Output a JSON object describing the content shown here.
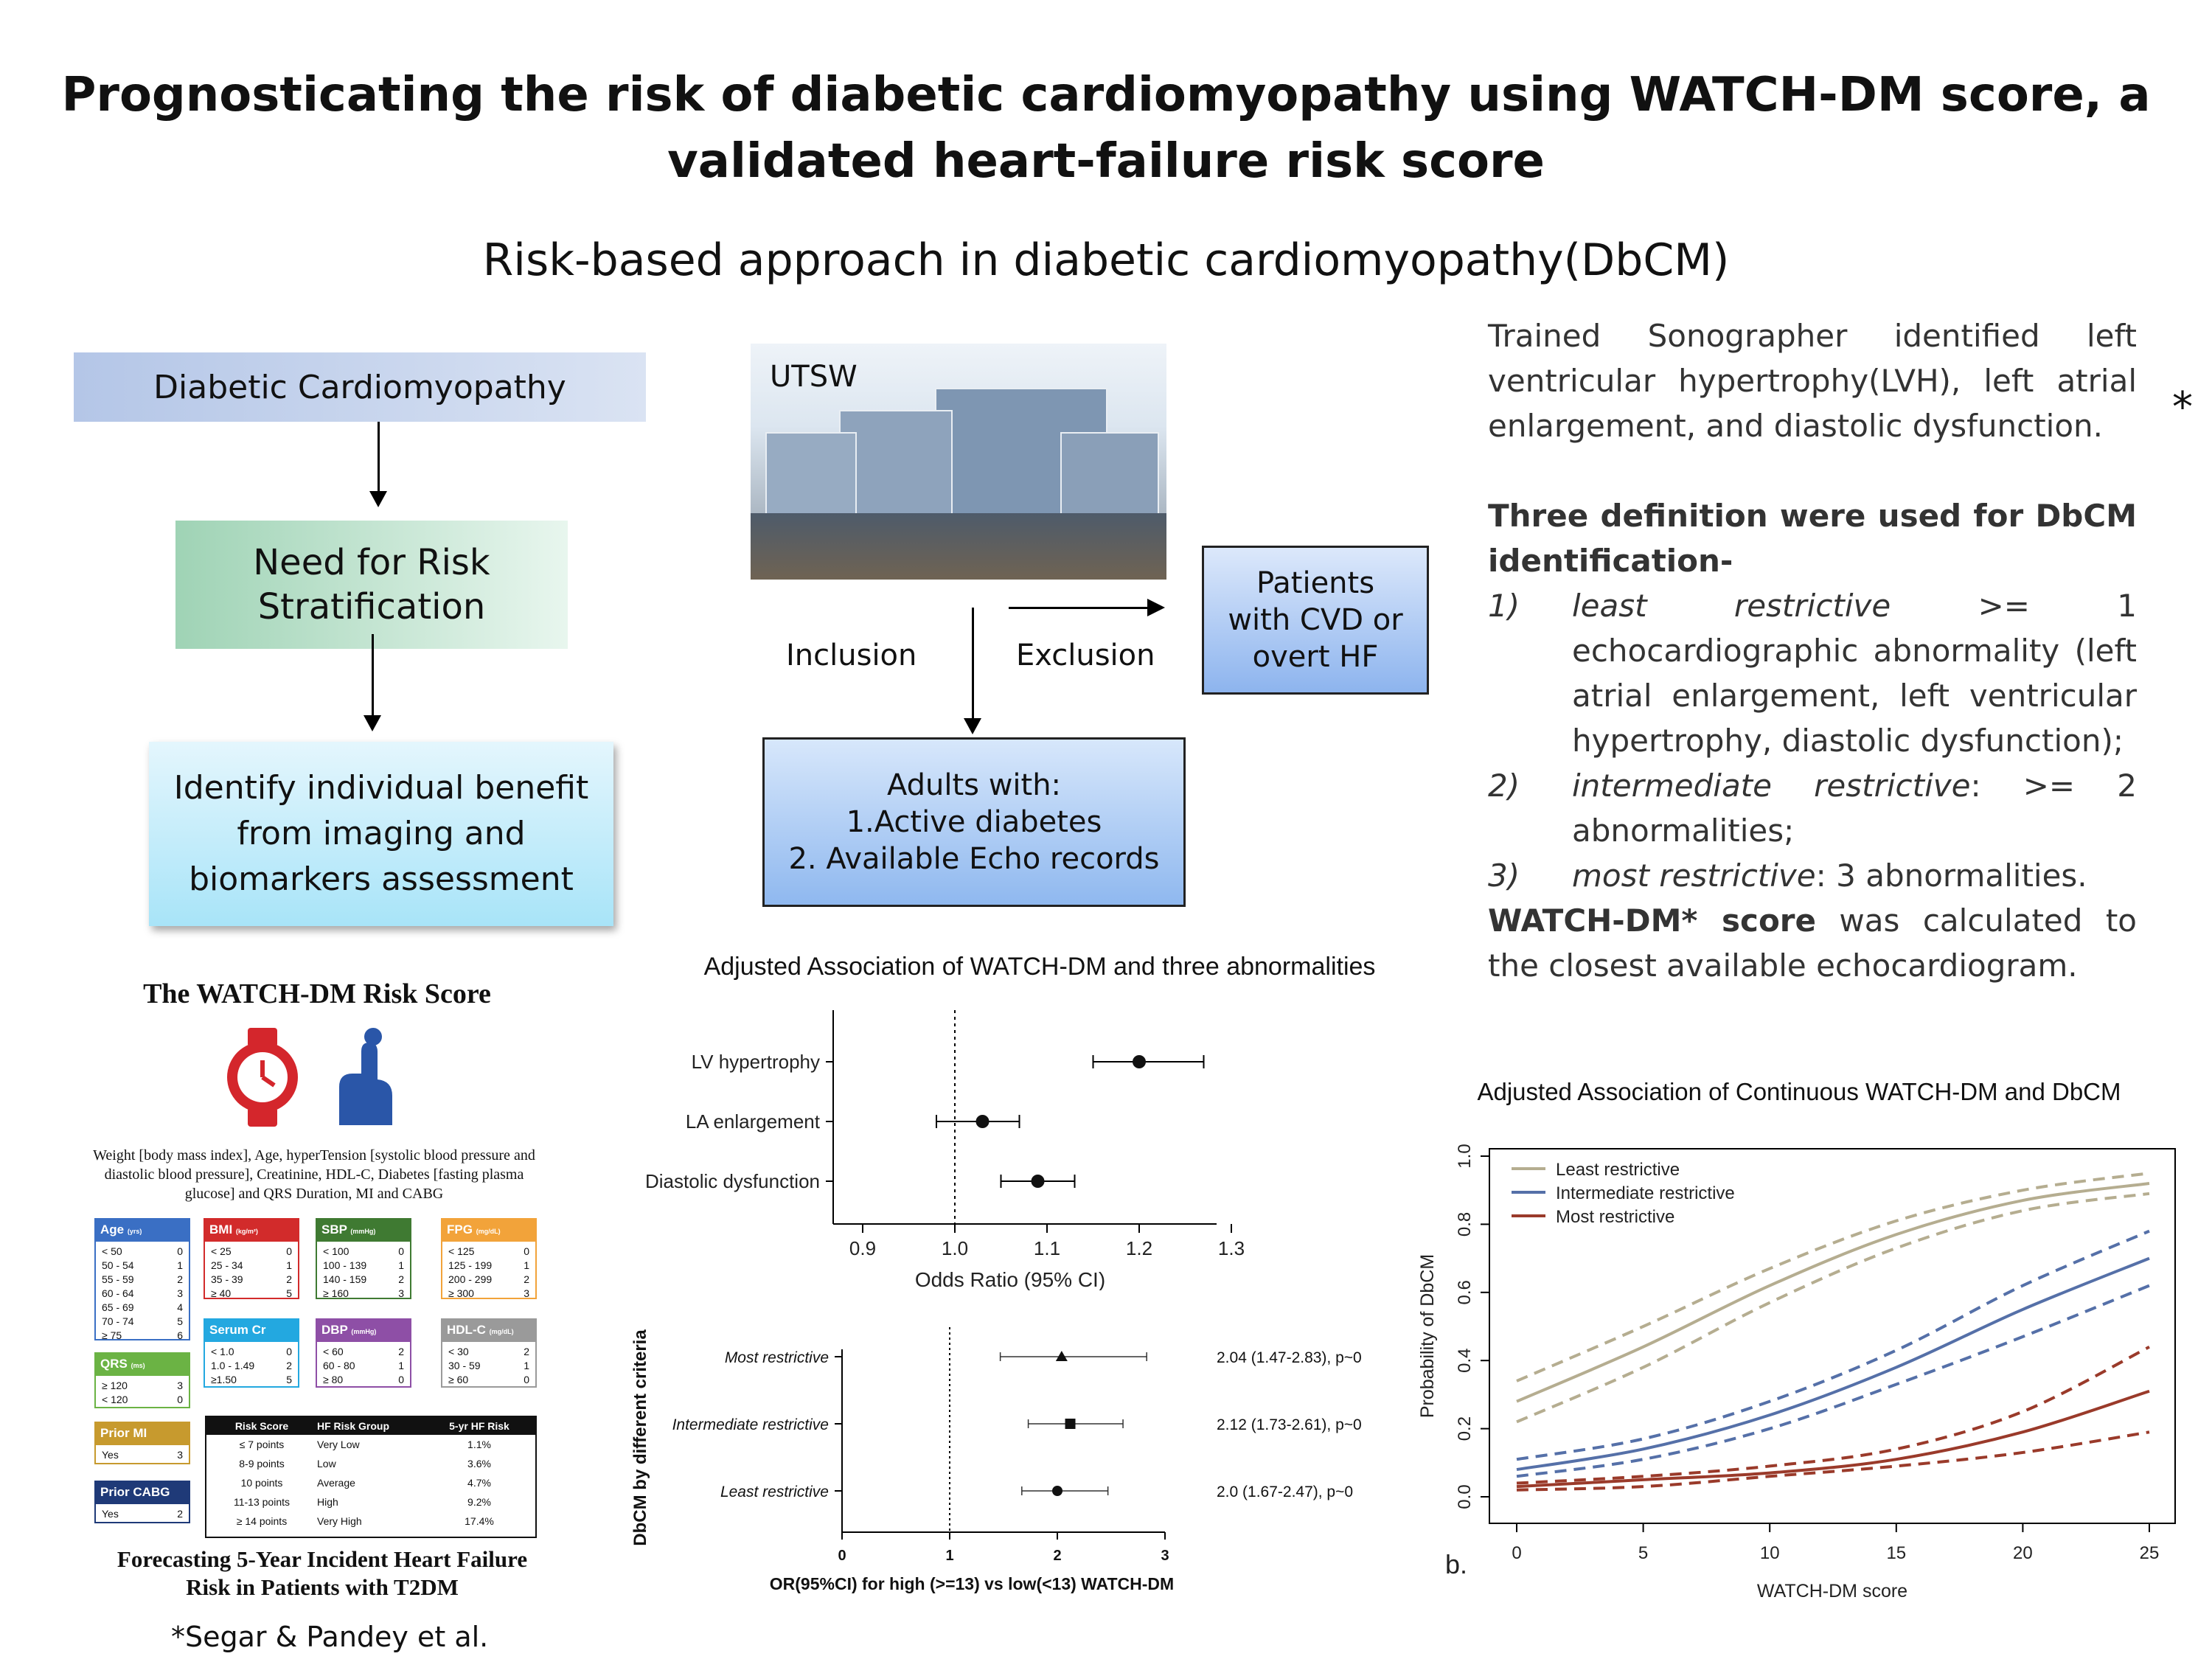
{
  "title_line1": "Prognosticating the risk of diabetic cardiomyopathy using WATCH-DM score, a",
  "title_line2": "validated heart-failure risk score",
  "subtitle": "Risk-based approach in diabetic cardiomyopathy(DbCM)",
  "flow": {
    "top": "Diabetic Cardiomyopathy",
    "middle": [
      "Need for Risk",
      "Stratification"
    ],
    "bottom": [
      "Identify individual benefit",
      "from imaging and",
      "biomarkers assessment"
    ]
  },
  "cohort": {
    "site": "UTSW",
    "inclusion": "Inclusion",
    "exclusion": "Exclusion",
    "excluded": [
      "Patients",
      "with CVD or",
      "overt HF"
    ],
    "included": [
      "Adults with:",
      "1.Active diabetes",
      "2. Available Echo records"
    ]
  },
  "methods": {
    "para1": "Trained Sonographer identified left ventricular hypertrophy(LVH), left atrial enlargement, and diastolic dysfunction.",
    "star": "*",
    "defs_heading": "Three definition were used for DbCM identification-",
    "defs": [
      {
        "num": "1)",
        "term": "least restrictive",
        "rest": " >= 1 echocardiographic abnormality (left atrial enlargement, left ventricular hypertrophy, diastolic dysfunction);"
      },
      {
        "num": "2)",
        "term": "intermediate restrictive",
        "rest": ": >= 2 abnormalities;"
      },
      {
        "num": "3)",
        "term": "most restrictive",
        "rest": ": 3 abnormalities."
      }
    ],
    "score_bold": "WATCH-DM* score",
    "score_rest": " was calculated to the closest available echocardiogram."
  },
  "watch": {
    "title": "The WATCH-DM Risk Score",
    "desc": "Weight [body mass index], Age, hyperTension [systolic blood pressure and diastolic blood pressure], Creatinine, HDL-C, Diabetes [fasting plasma glucose] and QRS Duration, MI and CABG",
    "forecast_line1": "Forecasting 5-Year Incident Heart Failure",
    "forecast_line2": "Risk in Patients with T2DM",
    "citation": "*Segar & Pandey et al.",
    "cards": [
      {
        "name": "Age",
        "unit": "(yrs)",
        "color": "#3a6fc4",
        "rows": [
          [
            "< 50",
            "0"
          ],
          [
            "50 - 54",
            "1"
          ],
          [
            "55 - 59",
            "2"
          ],
          [
            "60 - 64",
            "3"
          ],
          [
            "65 - 69",
            "4"
          ],
          [
            "70 - 74",
            "5"
          ],
          [
            "≥ 75",
            "6"
          ]
        ]
      },
      {
        "name": "BMI",
        "unit": "(kg/m²)",
        "color": "#d22b2b",
        "rows": [
          [
            "< 25",
            "0"
          ],
          [
            "25 - 34",
            "1"
          ],
          [
            "35 - 39",
            "2"
          ],
          [
            "≥ 40",
            "5"
          ]
        ]
      },
      {
        "name": "SBP",
        "unit": "(mmHg)",
        "color": "#3f7a32",
        "rows": [
          [
            "< 100",
            "0"
          ],
          [
            "100 - 139",
            "1"
          ],
          [
            "140 - 159",
            "2"
          ],
          [
            "≥ 160",
            "3"
          ]
        ]
      },
      {
        "name": "FPG",
        "unit": "(mg/dL)",
        "color": "#f2a33a",
        "rows": [
          [
            "< 125",
            "0"
          ],
          [
            "125 - 199",
            "1"
          ],
          [
            "200 - 299",
            "2"
          ],
          [
            "≥ 300",
            "3"
          ]
        ]
      },
      {
        "name": "Serum Cr",
        "unit": "(mg/dL)",
        "color": "#23a8e0",
        "rows": [
          [
            "< 1.0",
            "0"
          ],
          [
            "1.0 - 1.49",
            "2"
          ],
          [
            "≥1.50",
            "5"
          ]
        ]
      },
      {
        "name": "DBP",
        "unit": "(mmHg)",
        "color": "#8e4fa6",
        "rows": [
          [
            "< 60",
            "2"
          ],
          [
            "60 - 80",
            "1"
          ],
          [
            "≥ 80",
            "0"
          ]
        ]
      },
      {
        "name": "HDL-C",
        "unit": "(mg/dL)",
        "color": "#9a9a9a",
        "rows": [
          [
            "< 30",
            "2"
          ],
          [
            "30 - 59",
            "1"
          ],
          [
            "≥ 60",
            "0"
          ]
        ]
      },
      {
        "name": "QRS",
        "unit": "(ms)",
        "color": "#6bb344",
        "rows": [
          [
            "≥ 120",
            "3"
          ],
          [
            "< 120",
            "0"
          ]
        ]
      },
      {
        "name": "Prior MI",
        "unit": "",
        "color": "#c79a2e",
        "rows": [
          [
            "Yes",
            "3"
          ]
        ]
      },
      {
        "name": "Prior CABG",
        "unit": "",
        "color": "#1f3a78",
        "rows": [
          [
            "Yes",
            "2"
          ]
        ]
      }
    ],
    "risk_table": {
      "headers": [
        "Risk Score",
        "HF Risk Group",
        "5-yr HF Risk"
      ],
      "rows": [
        [
          "≤ 7 points",
          "Very Low",
          "1.1%"
        ],
        [
          "8-9 points",
          "Low",
          "3.6%"
        ],
        [
          "10 points",
          "Average",
          "4.7%"
        ],
        [
          "11-13 points",
          "High",
          "9.2%"
        ],
        [
          "≥ 14 points",
          "Very High",
          "17.4%"
        ]
      ]
    }
  },
  "chart_data": [
    {
      "type": "scatter",
      "title": "Adjusted Association of WATCH-DM and three abnormalities",
      "xlabel": "Odds Ratio (95% CI)",
      "ylabel": "",
      "xlim": [
        0.9,
        1.3
      ],
      "xticks": [
        "0.9",
        "1.0",
        "1.1",
        "1.2",
        "1.3"
      ],
      "reference_line": 1.0,
      "categories": [
        "LV hypertrophy",
        "LA enlargement",
        "Diastolic dysfunction"
      ],
      "values": [
        1.2,
        1.03,
        1.09
      ],
      "lower": [
        1.15,
        0.98,
        1.05
      ],
      "upper": [
        1.27,
        1.07,
        1.13
      ]
    },
    {
      "type": "scatter",
      "title": "",
      "xlabel": "OR(95%CI) for high (>=13) vs low(<13) WATCH-DM",
      "ylabel": "DbCM by different criteria",
      "xlim": [
        0,
        3
      ],
      "xticks": [
        "0",
        "1",
        "2",
        "3"
      ],
      "reference_line": 1,
      "categories": [
        "Most restrictive",
        "Intermediate restrictive",
        "Least restrictive"
      ],
      "values": [
        2.04,
        2.12,
        2.0
      ],
      "lower": [
        1.47,
        1.73,
        1.67
      ],
      "upper": [
        2.83,
        2.61,
        2.47
      ],
      "labels": [
        "2.04 (1.47-2.83), p~0",
        "2.12 (1.73-2.61), p~0",
        "2.0 (1.67-2.47), p~0"
      ]
    },
    {
      "type": "line",
      "title": "Adjusted Association of Continuous WATCH-DM and DbCM",
      "panel_label": "b.",
      "xlabel": "WATCH-DM score",
      "ylabel": "Probability of DbCM",
      "xlim": [
        0,
        25
      ],
      "ylim": [
        0,
        1
      ],
      "xticks": [
        "0",
        "5",
        "10",
        "15",
        "20",
        "25"
      ],
      "yticks": [
        "0.0",
        "0.2",
        "0.4",
        "0.6",
        "0.8",
        "1.0"
      ],
      "legend_position": "top-left",
      "x": [
        0,
        5,
        10,
        15,
        20,
        25
      ],
      "series": [
        {
          "name": "Least restrictive",
          "color": "#b5ad90",
          "values": [
            0.28,
            0.44,
            0.62,
            0.77,
            0.87,
            0.92
          ],
          "lower": [
            0.22,
            0.38,
            0.57,
            0.73,
            0.84,
            0.89
          ],
          "upper": [
            0.34,
            0.5,
            0.67,
            0.81,
            0.9,
            0.95
          ]
        },
        {
          "name": "Intermediate restrictive",
          "color": "#5570a8",
          "values": [
            0.08,
            0.14,
            0.24,
            0.38,
            0.55,
            0.7
          ],
          "lower": [
            0.06,
            0.11,
            0.2,
            0.33,
            0.47,
            0.62
          ],
          "upper": [
            0.11,
            0.17,
            0.28,
            0.43,
            0.62,
            0.78
          ]
        },
        {
          "name": "Most restrictive",
          "color": "#9a3a2a",
          "values": [
            0.03,
            0.05,
            0.07,
            0.11,
            0.19,
            0.31
          ],
          "lower": [
            0.02,
            0.03,
            0.06,
            0.09,
            0.13,
            0.19
          ],
          "upper": [
            0.04,
            0.06,
            0.09,
            0.14,
            0.25,
            0.44
          ]
        }
      ]
    }
  ]
}
